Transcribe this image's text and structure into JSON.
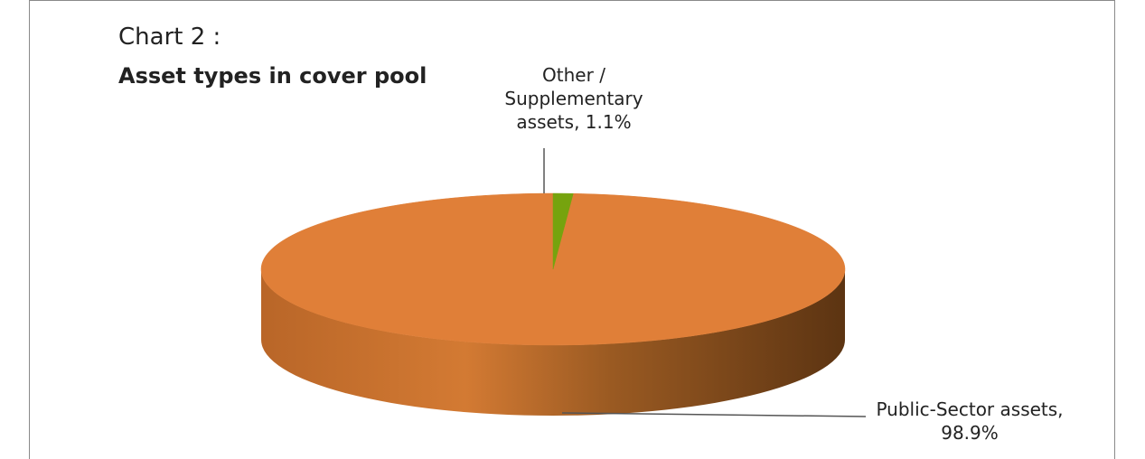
{
  "header": {
    "chart_label": "Chart 2 :",
    "title": "Asset types in cover pool"
  },
  "chart_data": {
    "type": "pie",
    "title": "Asset types in cover pool",
    "categories": [
      "Public-Sector assets",
      "Other / Supplementary assets"
    ],
    "values": [
      98.9,
      1.1
    ],
    "unit": "%",
    "colors": [
      "#e07f38",
      "#76a30e"
    ],
    "labels": {
      "other": [
        "Other /",
        "Supplementary",
        "assets, 1.1%"
      ],
      "public": [
        "Public-Sector assets,",
        "98.9%"
      ]
    },
    "style": "3d-tilted"
  }
}
